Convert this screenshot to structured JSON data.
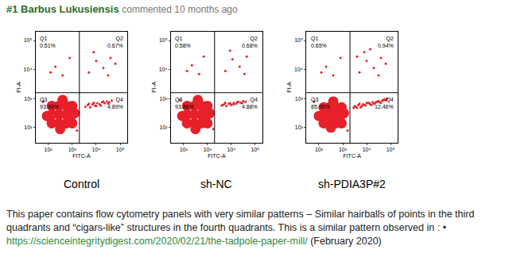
{
  "header": {
    "number": "#1",
    "author": "Barbus Lukusiensis",
    "meta": "commented 10 months ago"
  },
  "chart_data": [
    {
      "type": "scatter",
      "title": "Control",
      "x_label": "FITC-A",
      "y_label": "PI-A",
      "log": true,
      "grid": false,
      "color": "#e8202a",
      "xlim": [
        30,
        200000
      ],
      "ylim": [
        30,
        200000
      ],
      "xticks": [
        {
          "value": 100,
          "label": "10²"
        },
        {
          "value": 1000,
          "label": "10³"
        },
        {
          "value": 10000,
          "label": "10⁴"
        },
        {
          "value": 100000,
          "label": "10⁵"
        }
      ],
      "yticks": [
        {
          "value": 100,
          "label": "10²"
        },
        {
          "value": 1000,
          "label": "10³"
        },
        {
          "value": 10000,
          "label": "10⁴"
        },
        {
          "value": 100000,
          "label": "10⁵"
        }
      ],
      "gate": {
        "x": 2000,
        "y": 1600
      },
      "quadrants": [
        {
          "name": "Q1",
          "text": "0.51%"
        },
        {
          "name": "Q2",
          "text": "0.67%"
        },
        {
          "name": "Q3",
          "text": "93.93%"
        },
        {
          "name": "Q4",
          "text": "4.89%"
        }
      ],
      "series": [
        {
          "marker": "blob",
          "x": [
            141,
            282,
            562,
            1000,
            141,
            282,
            562,
            1000,
            141,
            282,
            562,
            1000,
            89,
            316,
            398,
            1259
          ],
          "y": [
            141,
            141,
            141,
            141,
            282,
            282,
            282,
            282,
            562,
            562,
            562,
            562,
            251,
            89,
            891,
            316
          ]
        },
        {
          "marker": "dot",
          "x": [
            3548,
            4467,
            5623,
            7079,
            8913,
            11220,
            14125,
            17783,
            22387,
            28184,
            35481,
            44668,
            5012,
            10000,
            19953,
            31623,
            7943,
            15849,
            5012,
            10000,
            19953,
            39811,
            7943,
            31623,
            63096,
            200,
            398,
            794,
            126,
            63,
            1585
          ],
          "y": [
            525,
            603,
            501,
            631,
            575,
            692,
            631,
            759,
            692,
            794,
            741,
            851,
            661,
            550,
            794,
            661,
            724,
            575,
            7943,
            19953,
            11220,
            25119,
            39811,
            6310,
            15849,
            12589,
            6310,
            25119,
            7943,
            794,
            79
          ]
        }
      ]
    },
    {
      "type": "scatter",
      "title": "sh-NC",
      "x_label": "FITC-A",
      "y_label": "PI-A",
      "log": true,
      "grid": false,
      "color": "#e8202a",
      "xlim": [
        30,
        200000
      ],
      "ylim": [
        30,
        200000
      ],
      "xticks": [
        {
          "value": 100,
          "label": "10²"
        },
        {
          "value": 1000,
          "label": "10³"
        },
        {
          "value": 10000,
          "label": "10⁴"
        },
        {
          "value": 100000,
          "label": "10⁵"
        }
      ],
      "yticks": [
        {
          "value": 100,
          "label": "10²"
        },
        {
          "value": 1000,
          "label": "10³"
        },
        {
          "value": 10000,
          "label": "10⁴"
        },
        {
          "value": 100000,
          "label": "10⁵"
        }
      ],
      "gate": {
        "x": 2000,
        "y": 1600
      },
      "quadrants": [
        {
          "name": "Q1",
          "text": "0.58%"
        },
        {
          "name": "Q2",
          "text": "0.68%"
        },
        {
          "name": "Q3",
          "text": "93.86%"
        },
        {
          "name": "Q4",
          "text": "4.88%"
        }
      ],
      "series": [
        {
          "marker": "blob",
          "x": [
            141,
            282,
            562,
            1000,
            141,
            282,
            562,
            1000,
            141,
            282,
            562,
            1000,
            89,
            316,
            398,
            1259
          ],
          "y": [
            141,
            141,
            141,
            141,
            282,
            282,
            282,
            282,
            562,
            562,
            562,
            562,
            251,
            89,
            891,
            316
          ]
        },
        {
          "marker": "dot",
          "x": [
            3981,
            5012,
            6310,
            7943,
            10000,
            12589,
            15849,
            19953,
            25119,
            31623,
            39811,
            4467,
            8913,
            17783,
            28184,
            5623,
            12589,
            5623,
            11220,
            22387,
            44668,
            8913,
            35481,
            224,
            447,
            708,
            141,
            71,
            1778
          ],
          "y": [
            575,
            631,
            550,
            661,
            603,
            708,
            661,
            776,
            724,
            813,
            776,
            603,
            692,
            741,
            692,
            724,
            631,
            8913,
            22387,
            12589,
            28184,
            44668,
            7079,
            14125,
            7079,
            28184,
            8913,
            891,
            89
          ]
        }
      ]
    },
    {
      "type": "scatter",
      "title": "sh-PDIA3P#2",
      "x_label": "FITC-A",
      "y_label": "PI-A",
      "log": true,
      "grid": false,
      "color": "#e8202a",
      "xlim": [
        30,
        200000
      ],
      "ylim": [
        30,
        200000
      ],
      "xticks": [
        {
          "value": 100,
          "label": "10²"
        },
        {
          "value": 1000,
          "label": "10³"
        },
        {
          "value": 10000,
          "label": "10⁴"
        },
        {
          "value": 100000,
          "label": "10⁵"
        }
      ],
      "yticks": [
        {
          "value": 100,
          "label": "10²"
        },
        {
          "value": 1000,
          "label": "10³"
        },
        {
          "value": 10000,
          "label": "10⁴"
        },
        {
          "value": 100000,
          "label": "10⁵"
        }
      ],
      "gate": {
        "x": 2000,
        "y": 1600
      },
      "quadrants": [
        {
          "name": "Q1",
          "text": "0.65%"
        },
        {
          "name": "Q2",
          "text": "0.94%"
        },
        {
          "name": "Q3",
          "text": "85.95%"
        },
        {
          "name": "Q4",
          "text": "12.46%"
        }
      ],
      "series": [
        {
          "marker": "blob",
          "x": [
            158,
            282,
            501,
            891,
            158,
            282,
            501,
            891,
            158,
            282,
            501,
            891,
            100,
            316,
            398,
            1122
          ],
          "y": [
            141,
            141,
            141,
            141,
            282,
            282,
            282,
            282,
            501,
            501,
            501,
            501,
            251,
            100,
            794,
            316
          ]
        },
        {
          "marker": "dot",
          "x": [
            2818,
            3548,
            4467,
            5623,
            7079,
            8913,
            11220,
            14125,
            17783,
            22387,
            28184,
            35481,
            44668,
            56234,
            70795,
            3162,
            5012,
            7943,
            12589,
            19953,
            31623,
            50119,
            3981,
            6310,
            10000,
            15849,
            25119,
            39811,
            63096,
            5012,
            10000,
            19953,
            39811,
            7943,
            31623,
            63096,
            3981,
            14125,
            200,
            398,
            794,
            126,
            63,
            1585
          ],
          "y": [
            479,
            525,
            603,
            501,
            631,
            575,
            692,
            631,
            759,
            692,
            794,
            741,
            851,
            933,
            1000,
            550,
            661,
            603,
            724,
            661,
            813,
            891,
            479,
            562,
            708,
            602,
            759,
            724,
            871,
            7943,
            19953,
            11220,
            25119,
            39811,
            6310,
            15849,
            28184,
            50119,
            12589,
            6310,
            25119,
            7943,
            794,
            79
          ]
        }
      ]
    }
  ],
  "comment": {
    "text": "This paper contains flow cytometry panels with very similar patterns – Similar hairballs of points in the third quadrants and “cigars-like” structures in the fourth quadrants. This is a similar pattern observed in : •",
    "link": "https://scienceintegritydigest.com/2020/02/21/the-tadpole-paper-mill/",
    "after": "(February 2020)"
  }
}
